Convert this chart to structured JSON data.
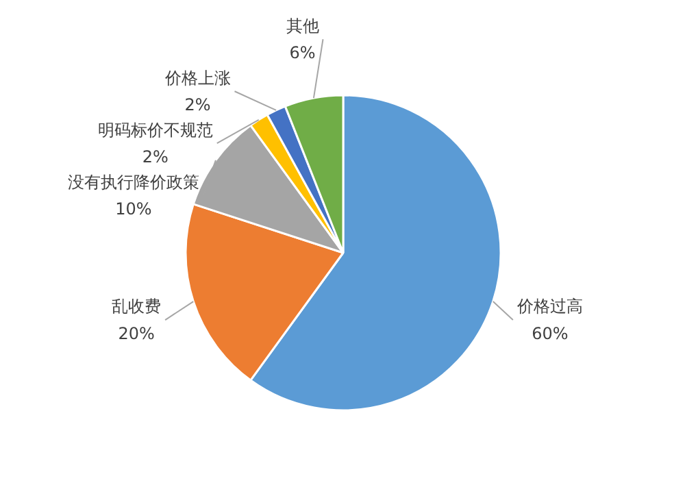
{
  "chart_data": {
    "type": "pie",
    "categories": [
      "价格过高",
      "乱收费",
      "没有执行降价政策",
      "明码标价不规范",
      "价格上涨",
      "其他"
    ],
    "values": [
      60,
      20,
      10,
      2,
      2,
      6
    ],
    "colors": [
      "#5b9bd5",
      "#ed7d31",
      "#a5a5a5",
      "#ffc000",
      "#4472c4",
      "#70ad47"
    ],
    "value_labels": [
      "60%",
      "20%",
      "10%",
      "2%",
      "2%",
      "6%"
    ]
  }
}
